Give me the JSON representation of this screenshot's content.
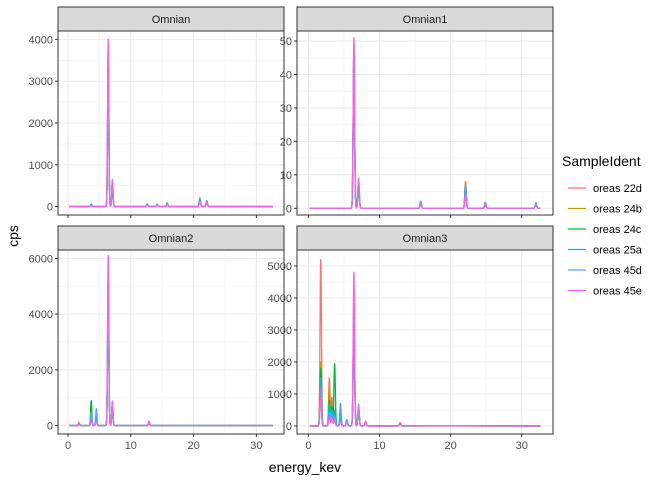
{
  "chart_data": {
    "type": "line",
    "xlabel": "energy_kev",
    "ylabel": "cps",
    "legend_title": "SampleIdent",
    "legend_position": "right",
    "x_range": [
      -1.6,
      34.4
    ],
    "x_ticks": [
      0,
      10,
      20,
      30
    ],
    "x_tick_labels": [
      "0",
      "10",
      "20",
      "30"
    ],
    "series_names": [
      "oreas 22d",
      "oreas 24b",
      "oreas 24c",
      "oreas 25a",
      "oreas 45d",
      "oreas 45e"
    ],
    "series_colors": [
      "#f8766d",
      "#b79f00",
      "#00ba38",
      "#00bfc4",
      "#619cff",
      "#f564e3"
    ],
    "panels": [
      {
        "title": "Omnian",
        "ylim": [
          -200,
          4200
        ],
        "y_ticks": [
          0,
          1000,
          2000,
          3000,
          4000
        ],
        "y_tick_labels": [
          "0",
          "1000",
          "2000",
          "3000",
          "4000"
        ],
        "peaks": [
          {
            "x": 3.7,
            "heights": [
              30,
              40,
              50,
              60,
              35,
              20
            ]
          },
          {
            "x": 6.4,
            "heights": [
              3000,
              3500,
              3600,
              3200,
              3800,
              4000
            ]
          },
          {
            "x": 7.06,
            "heights": [
              450,
              520,
              560,
              500,
              580,
              650
            ]
          },
          {
            "x": 12.6,
            "heights": [
              50,
              55,
              60,
              58,
              52,
              40
            ]
          },
          {
            "x": 14.2,
            "heights": [
              40,
              45,
              50,
              60,
              45,
              30
            ]
          },
          {
            "x": 15.8,
            "heights": [
              60,
              70,
              80,
              90,
              70,
              50
            ]
          },
          {
            "x": 21.0,
            "heights": [
              160,
              180,
              200,
              170,
              190,
              120
            ]
          },
          {
            "x": 22.1,
            "heights": [
              120,
              130,
              140,
              125,
              135,
              110
            ]
          }
        ]
      },
      {
        "title": "Omnian1",
        "ylim": [
          -2,
          53
        ],
        "y_ticks": [
          0,
          10,
          20,
          30,
          40,
          50
        ],
        "y_tick_labels": [
          "0",
          "10",
          "20",
          "30",
          "40",
          "50"
        ],
        "peaks": [
          {
            "x": 6.4,
            "heights": [
              42,
              46,
              48,
              45,
              49,
              51
            ]
          },
          {
            "x": 7.06,
            "heights": [
              7,
              7.5,
              8,
              7.4,
              8.2,
              9
            ]
          },
          {
            "x": 15.8,
            "heights": [
              1.5,
              1.7,
              2.0,
              2.1,
              1.8,
              1.2
            ]
          },
          {
            "x": 22.1,
            "heights": [
              8,
              7.5,
              6.5,
              6.0,
              7.0,
              4.0
            ]
          },
          {
            "x": 24.9,
            "heights": [
              1.8,
              1.6,
              1.4,
              1.5,
              1.7,
              1.0
            ]
          },
          {
            "x": 32.0,
            "heights": [
              1.2,
              1.4,
              1.6,
              1.0,
              1.3,
              0.9
            ]
          }
        ]
      },
      {
        "title": "Omnian2",
        "ylim": [
          -300,
          6300
        ],
        "y_ticks": [
          0,
          2000,
          4000,
          6000
        ],
        "y_tick_labels": [
          "0",
          "2000",
          "4000",
          "6000"
        ],
        "peaks": [
          {
            "x": 1.74,
            "heights": [
              120,
              60,
              50,
              40,
              60,
              40
            ]
          },
          {
            "x": 3.69,
            "heights": [
              300,
              350,
              900,
              400,
              450,
              200
            ]
          },
          {
            "x": 4.51,
            "heights": [
              200,
              250,
              300,
              350,
              600,
              150
            ]
          },
          {
            "x": 6.4,
            "heights": [
              4800,
              5200,
              5000,
              5300,
              5600,
              6100
            ]
          },
          {
            "x": 7.06,
            "heights": [
              700,
              750,
              720,
              760,
              800,
              880
            ]
          },
          {
            "x": 12.9,
            "heights": [
              120,
              140,
              130,
              150,
              135,
              160
            ]
          }
        ]
      },
      {
        "title": "Omnian3",
        "ylim": [
          -250,
          5500
        ],
        "y_ticks": [
          0,
          1000,
          2000,
          3000,
          4000,
          5000
        ],
        "y_tick_labels": [
          "0",
          "1000",
          "2000",
          "3000",
          "4000",
          "5000"
        ],
        "peaks": [
          {
            "x": 1.74,
            "heights": [
              5200,
              2000,
              1800,
              1500,
              1200,
              900
            ]
          },
          {
            "x": 2.95,
            "heights": [
              1500,
              1200,
              800,
              700,
              400,
              300
            ]
          },
          {
            "x": 3.31,
            "heights": [
              900,
              700,
              600,
              500,
              400,
              250
            ]
          },
          {
            "x": 3.69,
            "heights": [
              500,
              400,
              1950,
              450,
              300,
              200
            ]
          },
          {
            "x": 4.51,
            "heights": [
              350,
              300,
              400,
              350,
              700,
              150
            ]
          },
          {
            "x": 5.41,
            "heights": [
              150,
              120,
              180,
              160,
              200,
              100
            ]
          },
          {
            "x": 6.4,
            "heights": [
              3200,
              3500,
              3400,
              3600,
              4000,
              4800
            ]
          },
          {
            "x": 7.06,
            "heights": [
              500,
              550,
              520,
              560,
              600,
              680
            ]
          },
          {
            "x": 8.04,
            "heights": [
              100,
              120,
              110,
              130,
              140,
              150
            ]
          },
          {
            "x": 12.9,
            "heights": [
              80,
              90,
              85,
              95,
              100,
              110
            ]
          }
        ]
      }
    ]
  }
}
